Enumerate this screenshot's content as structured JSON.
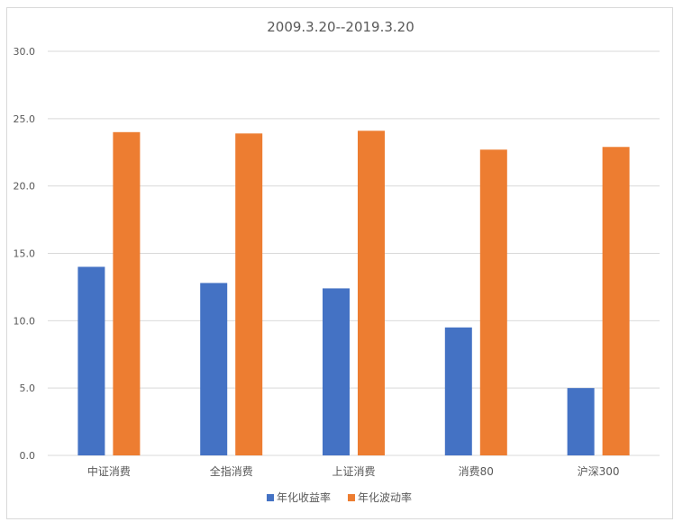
{
  "chart_data": {
    "type": "bar",
    "title": "2009.3.20--2019.3.20",
    "xlabel": "",
    "ylabel": "",
    "categories": [
      "中证消费",
      "全指消费",
      "上证消费",
      "消费80",
      "沪深300"
    ],
    "series": [
      {
        "name": "年化收益率",
        "color": "#4472c4",
        "values": [
          14.0,
          12.8,
          12.4,
          9.5,
          5.0
        ]
      },
      {
        "name": "年化波动率",
        "color": "#ed7d31",
        "values": [
          24.0,
          23.9,
          24.1,
          22.7,
          22.9
        ]
      }
    ],
    "ylim": [
      0,
      30
    ],
    "yticks": [
      "0.0",
      "5.0",
      "10.0",
      "15.0",
      "20.0",
      "25.0",
      "30.0"
    ],
    "grid": true,
    "legend": "bottom"
  }
}
